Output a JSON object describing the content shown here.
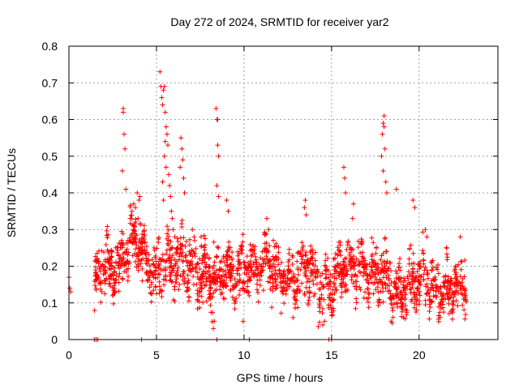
{
  "chart_data": {
    "type": "scatter",
    "title": "Day 272 of 2024, SRMTID for receiver yar2",
    "xlabel": "GPS time / hours",
    "ylabel": "SRMTID / TECUs",
    "xlim": [
      0,
      24.5
    ],
    "ylim": [
      0,
      0.8
    ],
    "xticks": [
      0,
      5,
      10,
      15,
      20
    ],
    "xtick_labels": [
      "0",
      "5",
      "10",
      "15",
      "20"
    ],
    "yticks": [
      0,
      0.1,
      0.2,
      0.3,
      0.4,
      0.5,
      0.6,
      0.7,
      0.8
    ],
    "ytick_labels": [
      "0",
      "0.1",
      "0.2",
      "0.3",
      "0.4",
      "0.5",
      "0.6",
      "0.7",
      "0.8"
    ],
    "grid": true,
    "legend": "none",
    "marker": "+",
    "marker_color": "#ff0000",
    "series": [
      {
        "name": "SRMTID",
        "points": [
          [
            0.0,
            0.17
          ],
          [
            0.05,
            0.14
          ],
          [
            0.1,
            0.13
          ],
          [
            1.45,
            0.0
          ],
          [
            1.55,
            0.0
          ],
          [
            1.65,
            0.0
          ],
          [
            4.15,
            0.0
          ],
          [
            8.45,
            0.0
          ],
          [
            10.3,
            0.0
          ],
          [
            14.85,
            0.0
          ],
          [
            15.0,
            0.0
          ],
          [
            3.1,
            0.63
          ],
          [
            3.1,
            0.62
          ],
          [
            3.05,
            0.46
          ],
          [
            3.15,
            0.56
          ],
          [
            3.2,
            0.52
          ],
          [
            3.25,
            0.41
          ],
          [
            5.2,
            0.73
          ],
          [
            5.25,
            0.69
          ],
          [
            5.3,
            0.66
          ],
          [
            5.35,
            0.64
          ],
          [
            5.4,
            0.68
          ],
          [
            5.45,
            0.69
          ],
          [
            5.5,
            0.62
          ],
          [
            5.55,
            0.58
          ],
          [
            5.6,
            0.56
          ],
          [
            5.5,
            0.54
          ],
          [
            5.45,
            0.5
          ],
          [
            5.65,
            0.53
          ],
          [
            5.7,
            0.45
          ],
          [
            5.75,
            0.42
          ],
          [
            5.8,
            0.39
          ],
          [
            5.85,
            0.35
          ],
          [
            5.9,
            0.33
          ],
          [
            5.55,
            0.47
          ],
          [
            5.35,
            0.43
          ],
          [
            5.4,
            0.38
          ],
          [
            5.95,
            0.3
          ],
          [
            6.05,
            0.28
          ],
          [
            6.4,
            0.55
          ],
          [
            6.45,
            0.52
          ],
          [
            6.5,
            0.49
          ],
          [
            6.35,
            0.47
          ],
          [
            6.55,
            0.44
          ],
          [
            6.6,
            0.4
          ],
          [
            8.4,
            0.63
          ],
          [
            8.45,
            0.6
          ],
          [
            8.5,
            0.6
          ],
          [
            8.5,
            0.53
          ],
          [
            8.55,
            0.5
          ],
          [
            8.45,
            0.42
          ],
          [
            8.55,
            0.39
          ],
          [
            18.0,
            0.61
          ],
          [
            17.95,
            0.59
          ],
          [
            18.0,
            0.58
          ],
          [
            17.9,
            0.56
          ],
          [
            18.05,
            0.52
          ],
          [
            17.85,
            0.5
          ],
          [
            17.95,
            0.46
          ],
          [
            18.1,
            0.43
          ],
          [
            18.15,
            0.4
          ],
          [
            15.7,
            0.47
          ],
          [
            15.75,
            0.44
          ],
          [
            15.8,
            0.4
          ],
          [
            16.25,
            0.37
          ],
          [
            16.2,
            0.33
          ],
          [
            3.6,
            0.35
          ],
          [
            3.7,
            0.37
          ],
          [
            3.8,
            0.36
          ],
          [
            3.9,
            0.4
          ],
          [
            4.0,
            0.38
          ],
          [
            4.05,
            0.39
          ],
          [
            3.5,
            0.33
          ],
          [
            3.95,
            0.33
          ],
          [
            13.5,
            0.38
          ],
          [
            13.45,
            0.36
          ],
          [
            13.55,
            0.34
          ],
          [
            9.0,
            0.38
          ],
          [
            9.1,
            0.35
          ],
          [
            19.65,
            0.38
          ],
          [
            19.75,
            0.36
          ],
          [
            18.7,
            0.41
          ],
          [
            7.05,
            0.3
          ],
          [
            7.15,
            0.28
          ],
          [
            7.55,
            0.28
          ],
          [
            11.3,
            0.33
          ],
          [
            11.4,
            0.3
          ],
          [
            20.35,
            0.3
          ],
          [
            20.45,
            0.28
          ],
          [
            22.35,
            0.28
          ],
          [
            9.95,
            0.05
          ],
          [
            8.25,
            0.03
          ],
          [
            8.3,
            0.05
          ],
          [
            14.5,
            0.04
          ],
          [
            14.6,
            0.05
          ],
          [
            19.1,
            0.06
          ],
          [
            18.4,
            0.05
          ],
          [
            12.8,
            0.06
          ]
        ]
      }
    ],
    "coverage": {
      "x_start": 1.45,
      "x_end": 22.7,
      "seed": 272,
      "count": 1900,
      "median_band": [
        [
          1.5,
          0.17
        ],
        [
          2.0,
          0.2
        ],
        [
          2.5,
          0.19
        ],
        [
          3.0,
          0.22
        ],
        [
          3.5,
          0.26
        ],
        [
          4.0,
          0.26
        ],
        [
          4.5,
          0.19
        ],
        [
          5.0,
          0.17
        ],
        [
          5.5,
          0.22
        ],
        [
          6.0,
          0.2
        ],
        [
          6.5,
          0.22
        ],
        [
          7.0,
          0.2
        ],
        [
          7.5,
          0.18
        ],
        [
          8.0,
          0.16
        ],
        [
          8.5,
          0.17
        ],
        [
          9.0,
          0.19
        ],
        [
          9.5,
          0.17
        ],
        [
          10.0,
          0.2
        ],
        [
          10.5,
          0.19
        ],
        [
          11.0,
          0.21
        ],
        [
          11.5,
          0.2
        ],
        [
          12.0,
          0.18
        ],
        [
          12.5,
          0.17
        ],
        [
          13.0,
          0.16
        ],
        [
          13.5,
          0.2
        ],
        [
          14.0,
          0.17
        ],
        [
          14.5,
          0.14
        ],
        [
          15.0,
          0.15
        ],
        [
          15.5,
          0.18
        ],
        [
          16.0,
          0.21
        ],
        [
          16.5,
          0.2
        ],
        [
          17.0,
          0.19
        ],
        [
          17.5,
          0.17
        ],
        [
          18.0,
          0.18
        ],
        [
          18.5,
          0.14
        ],
        [
          19.0,
          0.13
        ],
        [
          19.5,
          0.15
        ],
        [
          20.0,
          0.17
        ],
        [
          20.5,
          0.15
        ],
        [
          21.0,
          0.12
        ],
        [
          21.5,
          0.14
        ],
        [
          22.0,
          0.14
        ],
        [
          22.7,
          0.15
        ]
      ],
      "spread": 0.055
    }
  }
}
